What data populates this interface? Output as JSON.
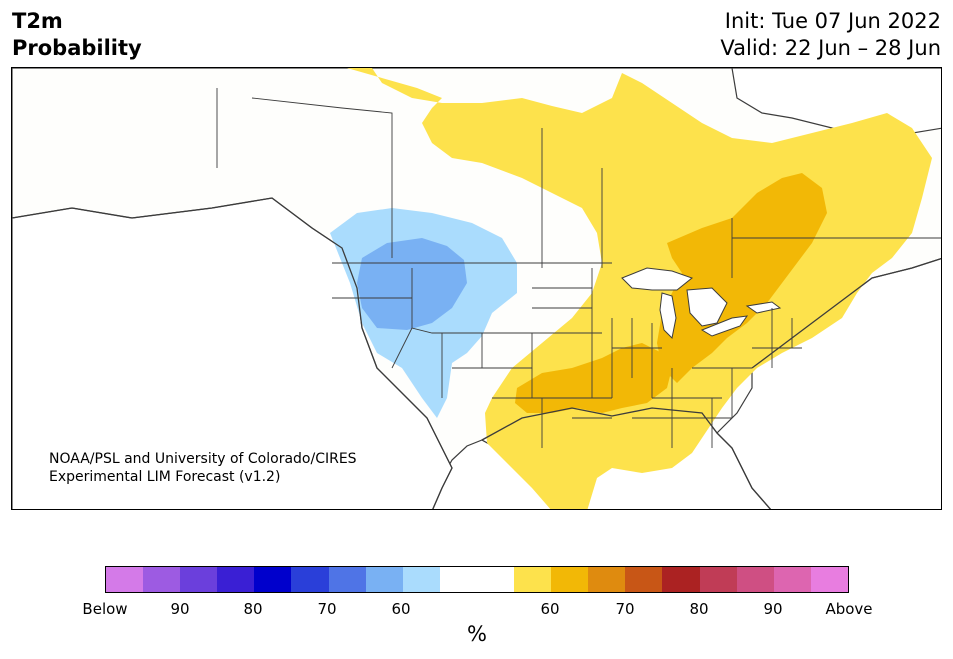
{
  "header": {
    "title_line1": "T2m",
    "title_line2": "Probability",
    "init": "Init: Tue 07 Jun 2022",
    "valid": "Valid: 22 Jun – 28 Jun"
  },
  "credit": {
    "line1": "NOAA/PSL and University of Colorado/CIRES",
    "line2": "Experimental LIM Forecast (v1.2)"
  },
  "colorbar": {
    "colors": [
      "#d47ae8",
      "#9d5be2",
      "#6b3fdc",
      "#3a1fd4",
      "#0000cc",
      "#2a3fd9",
      "#4f74e6",
      "#79b1f3",
      "#aadcfd",
      "#ffffff",
      "#ffffff",
      "#fde24c",
      "#f2b806",
      "#df8b0f",
      "#c85616",
      "#ab2222",
      "#c03c56",
      "#cf4f83",
      "#dd65b0",
      "#e87de0"
    ],
    "tick_labels": [
      "Below",
      "90",
      "80",
      "70",
      "60",
      "60",
      "70",
      "80",
      "90",
      "Above"
    ],
    "unit": "%"
  },
  "map_colors": {
    "land": "#fefefc",
    "lightblue": "#aadcfd",
    "blue": "#79b1f3",
    "yellow": "#fde24c",
    "orange": "#f2b806",
    "water": "#ffffff",
    "border": "#3c3c3c"
  }
}
